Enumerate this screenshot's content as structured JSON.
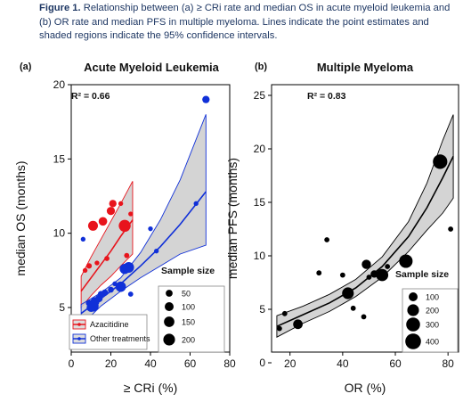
{
  "caption": {
    "label": "Figure 1.",
    "text": " Relationship between (a) ≥ CRi rate and median OS in acute myeloid leukemia and (b) OR rate and median PFS in multiple myeloma.  Lines indicate the point estimates and shaded regions indicate the 95% confidence intervals."
  },
  "colors": {
    "red": "#e8141c",
    "blue": "#1030d8",
    "black": "#000000",
    "grey": "#cccccc"
  },
  "chart_data": [
    {
      "type": "scatter",
      "panel_label": "(a)",
      "title": "Acute Myeloid Leukemia",
      "xlabel": "≥ CRi (%)",
      "ylabel": "median OS (months)",
      "xlim": [
        0,
        80
      ],
      "ylim": [
        2,
        20
      ],
      "xticks": [
        0,
        20,
        40,
        60,
        80
      ],
      "yticks": [
        5,
        10,
        15,
        20
      ],
      "annotation": "R² = 0.66",
      "legend": {
        "title": "Sample size",
        "sizes": [
          50,
          100,
          150,
          200
        ],
        "series_entries": [
          "Azacitidine",
          "Other treatments"
        ]
      },
      "series": [
        {
          "name": "Azacitidine",
          "color": "#e8141c",
          "points": [
            {
              "x": 7,
              "y": 7.5,
              "n": 15
            },
            {
              "x": 9,
              "y": 7.8,
              "n": 25
            },
            {
              "x": 11,
              "y": 10.5,
              "n": 130
            },
            {
              "x": 13,
              "y": 8.0,
              "n": 15
            },
            {
              "x": 16,
              "y": 10.8,
              "n": 90
            },
            {
              "x": 18,
              "y": 8.3,
              "n": 20
            },
            {
              "x": 20,
              "y": 11.5,
              "n": 80
            },
            {
              "x": 21,
              "y": 12.0,
              "n": 60
            },
            {
              "x": 25,
              "y": 12.0,
              "n": 15
            },
            {
              "x": 27,
              "y": 10.5,
              "n": 210
            },
            {
              "x": 28,
              "y": 8.5,
              "n": 20
            },
            {
              "x": 30,
              "y": 11.3,
              "n": 15
            }
          ],
          "fit": [
            {
              "x": 5,
              "y": 6.1
            },
            {
              "x": 10,
              "y": 7.0
            },
            {
              "x": 15,
              "y": 7.9
            },
            {
              "x": 20,
              "y": 8.8
            },
            {
              "x": 25,
              "y": 9.8
            },
            {
              "x": 31,
              "y": 10.9
            }
          ],
          "ci_upper": [
            {
              "x": 5,
              "y": 7.1
            },
            {
              "x": 10,
              "y": 8.4
            },
            {
              "x": 15,
              "y": 9.6
            },
            {
              "x": 20,
              "y": 10.8
            },
            {
              "x": 25,
              "y": 12.0
            },
            {
              "x": 31,
              "y": 13.5
            }
          ],
          "ci_lower": [
            {
              "x": 5,
              "y": 5.0
            },
            {
              "x": 10,
              "y": 5.8
            },
            {
              "x": 15,
              "y": 6.5
            },
            {
              "x": 20,
              "y": 7.1
            },
            {
              "x": 25,
              "y": 7.8
            },
            {
              "x": 31,
              "y": 8.6
            }
          ]
        },
        {
          "name": "Other treatments",
          "color": "#1030d8",
          "points": [
            {
              "x": 6,
              "y": 9.6,
              "n": 15
            },
            {
              "x": 7,
              "y": 4.2,
              "n": 15
            },
            {
              "x": 9,
              "y": 5.3,
              "n": 40
            },
            {
              "x": 10,
              "y": 5.0,
              "n": 100
            },
            {
              "x": 11,
              "y": 5.1,
              "n": 180
            },
            {
              "x": 12,
              "y": 5.4,
              "n": 100
            },
            {
              "x": 14,
              "y": 5.6,
              "n": 60
            },
            {
              "x": 15,
              "y": 5.9,
              "n": 40
            },
            {
              "x": 17,
              "y": 6.0,
              "n": 40
            },
            {
              "x": 20,
              "y": 6.2,
              "n": 30
            },
            {
              "x": 22,
              "y": 6.6,
              "n": 15
            },
            {
              "x": 25,
              "y": 6.4,
              "n": 150
            },
            {
              "x": 27,
              "y": 7.6,
              "n": 140
            },
            {
              "x": 29,
              "y": 7.7,
              "n": 160
            },
            {
              "x": 30,
              "y": 5.9,
              "n": 20
            },
            {
              "x": 40,
              "y": 10.3,
              "n": 15
            },
            {
              "x": 43,
              "y": 8.8,
              "n": 15
            },
            {
              "x": 63,
              "y": 12.0,
              "n": 15
            },
            {
              "x": 68,
              "y": 19.0,
              "n": 60
            }
          ],
          "fit": [
            {
              "x": 5,
              "y": 4.6
            },
            {
              "x": 15,
              "y": 5.6
            },
            {
              "x": 25,
              "y": 6.6
            },
            {
              "x": 35,
              "y": 7.8
            },
            {
              "x": 45,
              "y": 9.1
            },
            {
              "x": 55,
              "y": 10.6
            },
            {
              "x": 68,
              "y": 12.8
            }
          ],
          "ci_upper": [
            {
              "x": 5,
              "y": 5.2
            },
            {
              "x": 15,
              "y": 6.0
            },
            {
              "x": 25,
              "y": 7.0
            },
            {
              "x": 35,
              "y": 8.7
            },
            {
              "x": 45,
              "y": 10.9
            },
            {
              "x": 55,
              "y": 13.6
            },
            {
              "x": 68,
              "y": 18.0
            }
          ],
          "ci_lower": [
            {
              "x": 5,
              "y": 3.8
            },
            {
              "x": 15,
              "y": 5.1
            },
            {
              "x": 25,
              "y": 6.1
            },
            {
              "x": 35,
              "y": 7.0
            },
            {
              "x": 45,
              "y": 7.8
            },
            {
              "x": 55,
              "y": 8.6
            },
            {
              "x": 68,
              "y": 9.2
            }
          ]
        }
      ]
    },
    {
      "type": "scatter",
      "panel_label": "(b)",
      "title": "Multiple Myeloma",
      "xlabel": "OR (%)",
      "ylabel": "median PFS (months)",
      "xlim": [
        13,
        84
      ],
      "ylim": [
        1,
        26
      ],
      "xticks": [
        20,
        40,
        60,
        80
      ],
      "yticks": [
        0,
        5,
        10,
        15,
        20,
        25
      ],
      "annotation": "R² = 0.83",
      "legend": {
        "title": "Sample size",
        "sizes": [
          100,
          200,
          300,
          400
        ]
      },
      "series": [
        {
          "color": "#000000",
          "points": [
            {
              "x": 16,
              "y": 3.2,
              "n": 20
            },
            {
              "x": 18,
              "y": 4.6,
              "n": 20
            },
            {
              "x": 23,
              "y": 3.6,
              "n": 120
            },
            {
              "x": 31,
              "y": 8.4,
              "n": 20
            },
            {
              "x": 34,
              "y": 11.5,
              "n": 20
            },
            {
              "x": 40,
              "y": 8.2,
              "n": 20
            },
            {
              "x": 42,
              "y": 6.5,
              "n": 200
            },
            {
              "x": 44,
              "y": 5.1,
              "n": 20
            },
            {
              "x": 48,
              "y": 4.3,
              "n": 20
            },
            {
              "x": 49,
              "y": 9.2,
              "n": 110
            },
            {
              "x": 50,
              "y": 8.0,
              "n": 20
            },
            {
              "x": 52,
              "y": 8.3,
              "n": 60
            },
            {
              "x": 55,
              "y": 8.2,
              "n": 220
            },
            {
              "x": 57,
              "y": 9.0,
              "n": 20
            },
            {
              "x": 64,
              "y": 9.5,
              "n": 280
            },
            {
              "x": 77,
              "y": 18.8,
              "n": 330
            },
            {
              "x": 81,
              "y": 12.5,
              "n": 20
            }
          ],
          "fit": [
            {
              "x": 15,
              "y": 3.4
            },
            {
              "x": 25,
              "y": 4.5
            },
            {
              "x": 35,
              "y": 5.6
            },
            {
              "x": 45,
              "y": 7.0
            },
            {
              "x": 55,
              "y": 9.0
            },
            {
              "x": 65,
              "y": 11.8
            },
            {
              "x": 72,
              "y": 14.5
            },
            {
              "x": 78,
              "y": 17.3
            },
            {
              "x": 82,
              "y": 19.3
            }
          ],
          "ci_upper": [
            {
              "x": 15,
              "y": 4.4
            },
            {
              "x": 25,
              "y": 5.3
            },
            {
              "x": 35,
              "y": 6.4
            },
            {
              "x": 45,
              "y": 7.8
            },
            {
              "x": 55,
              "y": 9.9
            },
            {
              "x": 65,
              "y": 13.2
            },
            {
              "x": 72,
              "y": 16.8
            },
            {
              "x": 78,
              "y": 20.8
            },
            {
              "x": 82,
              "y": 23.2
            }
          ],
          "ci_lower": [
            {
              "x": 15,
              "y": 2.4
            },
            {
              "x": 25,
              "y": 3.7
            },
            {
              "x": 35,
              "y": 4.8
            },
            {
              "x": 45,
              "y": 6.2
            },
            {
              "x": 55,
              "y": 8.0
            },
            {
              "x": 65,
              "y": 10.4
            },
            {
              "x": 72,
              "y": 12.4
            },
            {
              "x": 78,
              "y": 14.0
            },
            {
              "x": 82,
              "y": 15.4
            }
          ]
        }
      ]
    }
  ]
}
